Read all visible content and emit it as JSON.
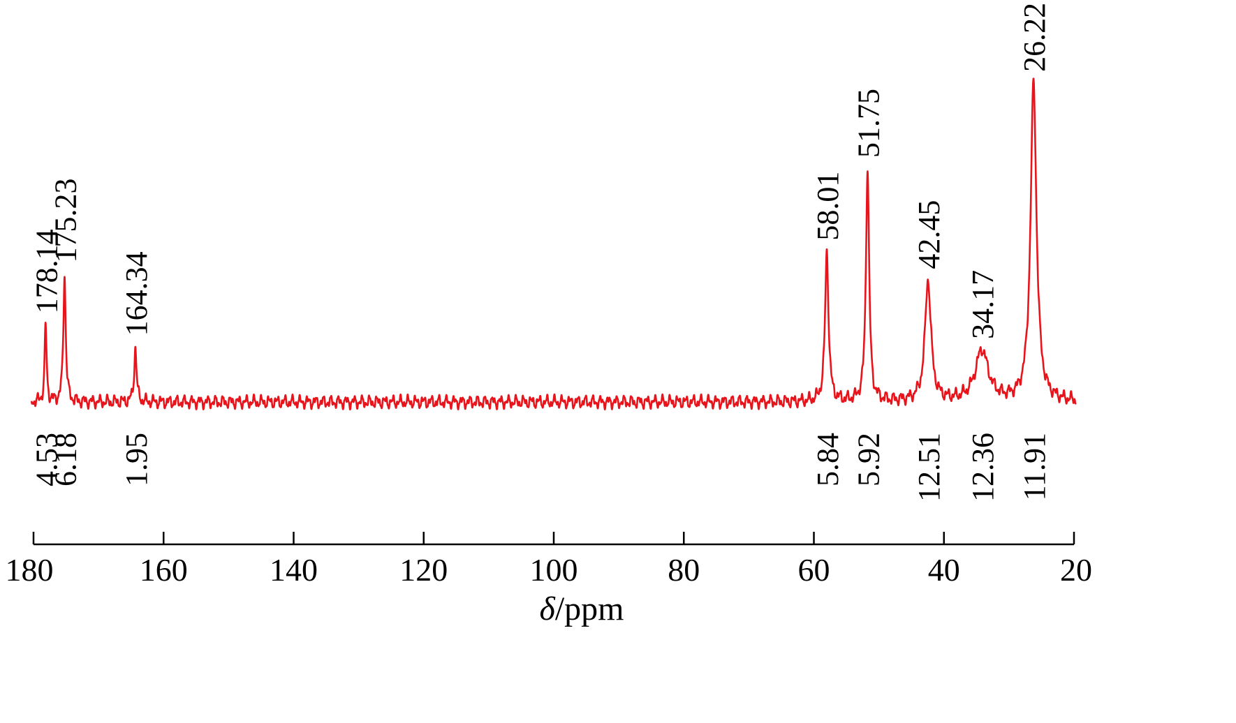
{
  "chart_data": {
    "type": "line",
    "xlabel_symbol": "δ",
    "xlabel_unit": "/ppm",
    "xlim": [
      180,
      20
    ],
    "x_reversed": true,
    "x_ticks": [
      180,
      160,
      140,
      120,
      100,
      80,
      60,
      40,
      20
    ],
    "x_tick_labels": [
      "180",
      "160",
      "140",
      "120",
      "100",
      "80",
      "60",
      "40",
      "20"
    ],
    "line_color": "#e8141c",
    "axis_color": "#000000",
    "peaks": [
      {
        "x": 178.14,
        "label": "178.14",
        "height": 0.24,
        "width": 0.18,
        "integral": "4.53"
      },
      {
        "x": 175.23,
        "label": "175.23",
        "height": 0.4,
        "width": 0.22,
        "integral": "6.18"
      },
      {
        "x": 164.34,
        "label": "164.34",
        "height": 0.17,
        "width": 0.22,
        "integral": "1.95"
      },
      {
        "x": 58.01,
        "label": "58.01",
        "height": 0.47,
        "width": 0.32,
        "integral": "5.84"
      },
      {
        "x": 51.75,
        "label": "51.75",
        "height": 0.73,
        "width": 0.3,
        "integral": "5.92"
      },
      {
        "x": 42.45,
        "label": "42.45",
        "height": 0.38,
        "width": 0.55,
        "integral": "12.51"
      },
      {
        "x": 34.17,
        "label": "34.17",
        "height": 0.16,
        "width": 1.2,
        "integral": "12.36"
      },
      {
        "x": 26.22,
        "label": "26.22",
        "height": 1.0,
        "width": 0.55,
        "integral": "11.91"
      }
    ]
  }
}
